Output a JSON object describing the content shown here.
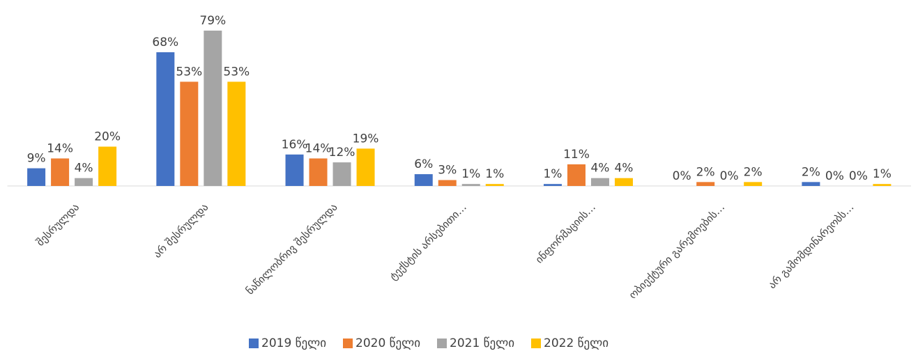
{
  "chart_data": {
    "type": "bar",
    "categories": [
      "შესრულდა",
      "არ შესრულდა",
      "ნაწილობრივ შესრულდა",
      "ტექსტის არსებითი…",
      "ინფორმაციის…",
      "ობიექტური გარემოების…",
      "არ გამომდინარეობს…"
    ],
    "series": [
      {
        "name": "2019 წელი",
        "color": "#4472c4",
        "values": [
          9,
          68,
          16,
          6,
          1,
          0,
          2
        ],
        "value_labels": [
          "9%",
          "68%",
          "16%",
          "6%",
          "1%",
          "0%",
          "2%"
        ]
      },
      {
        "name": "2020 წელი",
        "color": "#ed7d31",
        "values": [
          14,
          53,
          14,
          3,
          11,
          2,
          0
        ],
        "value_labels": [
          "14%",
          "53%",
          "14%",
          "3%",
          "11%",
          "2%",
          "0%"
        ]
      },
      {
        "name": "2021 წელი",
        "color": "#a5a5a5",
        "values": [
          4,
          79,
          12,
          1,
          4,
          0,
          0
        ],
        "value_labels": [
          "4%",
          "79%",
          "12%",
          "1%",
          "4%",
          "0%",
          "0%"
        ]
      },
      {
        "name": "2022 წელი",
        "color": "#ffc000",
        "values": [
          20,
          53,
          19,
          1,
          4,
          2,
          1
        ],
        "value_labels": [
          "20%",
          "53%",
          "19%",
          "1%",
          "4%",
          "2%",
          "1%"
        ]
      }
    ],
    "ylim": [
      0,
      85
    ],
    "legend": "bottom"
  }
}
